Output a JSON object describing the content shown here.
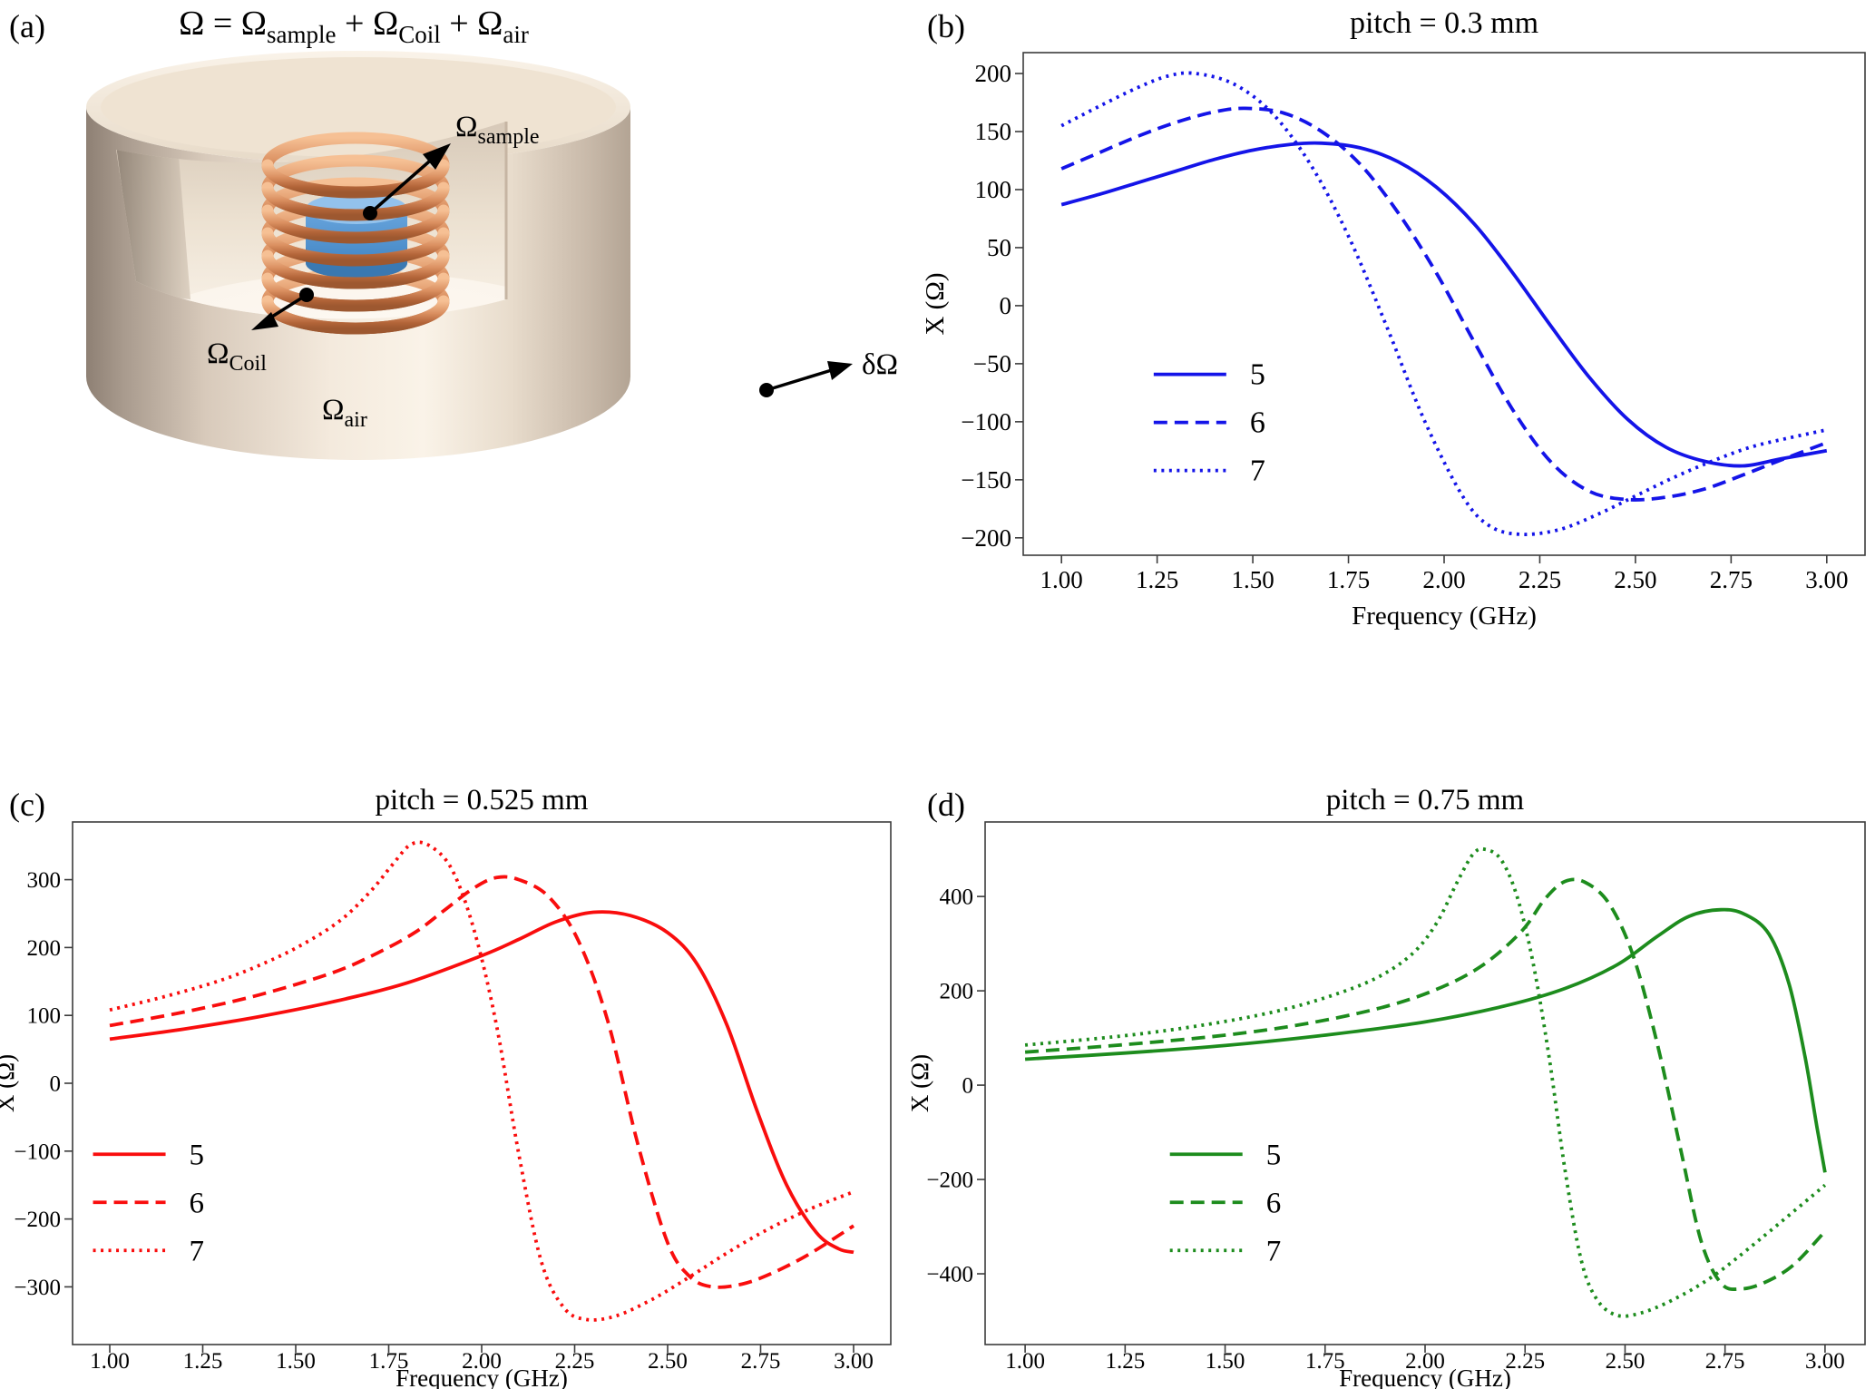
{
  "panel_a": {
    "label": "(a)",
    "formula": {
      "p1": "Ω = Ω",
      "s1": "sample",
      "p2": " + Ω",
      "s2": "Coil",
      "p3": " + Ω",
      "s3": "air"
    },
    "annotations": {
      "sample_base": "Ω",
      "sample_sub": "sample",
      "coil_base": "Ω",
      "coil_sub": "Coil",
      "air_base": "Ω",
      "air_sub": "air",
      "boundary": "δΩ"
    }
  },
  "chart_data": [
    {
      "panel_label": "(b)",
      "type": "line",
      "title": "pitch = 0.3 mm",
      "xlabel": "Frequency (GHz)",
      "ylabel": "X (Ω)",
      "color": "#1414e8",
      "xlim": [
        0.9,
        3.1
      ],
      "ylim": [
        -215,
        218
      ],
      "xticks": [
        1.0,
        1.25,
        1.5,
        1.75,
        2.0,
        2.25,
        2.5,
        2.75,
        3.0
      ],
      "xtick_labels": [
        "1.00",
        "1.25",
        "1.50",
        "1.75",
        "2.00",
        "2.25",
        "2.50",
        "2.75",
        "3.00"
      ],
      "yticks": [
        -200,
        -150,
        -100,
        -50,
        0,
        50,
        100,
        150,
        200
      ],
      "ytick_labels": [
        "−200",
        "−150",
        "−100",
        "−50",
        "0",
        "50",
        "100",
        "150",
        "200"
      ],
      "legend_position": "center-left",
      "grid": false,
      "series": [
        {
          "name": "5",
          "style": "solid",
          "points": [
            [
              1.0,
              87
            ],
            [
              1.1,
              96
            ],
            [
              1.2,
              106
            ],
            [
              1.3,
              116
            ],
            [
              1.4,
              126
            ],
            [
              1.5,
              134
            ],
            [
              1.6,
              139
            ],
            [
              1.68,
              140
            ],
            [
              1.78,
              136
            ],
            [
              1.88,
              124
            ],
            [
              1.98,
              102
            ],
            [
              2.08,
              70
            ],
            [
              2.18,
              28
            ],
            [
              2.28,
              -18
            ],
            [
              2.38,
              -62
            ],
            [
              2.48,
              -98
            ],
            [
              2.58,
              -122
            ],
            [
              2.68,
              -134
            ],
            [
              2.78,
              -138
            ],
            [
              2.88,
              -132
            ],
            [
              3.0,
              -125
            ]
          ]
        },
        {
          "name": "6",
          "style": "dashed",
          "points": [
            [
              1.0,
              118
            ],
            [
              1.1,
              132
            ],
            [
              1.2,
              146
            ],
            [
              1.3,
              158
            ],
            [
              1.4,
              167
            ],
            [
              1.48,
              170
            ],
            [
              1.58,
              166
            ],
            [
              1.68,
              150
            ],
            [
              1.78,
              122
            ],
            [
              1.88,
              80
            ],
            [
              1.98,
              28
            ],
            [
              2.08,
              -32
            ],
            [
              2.18,
              -90
            ],
            [
              2.28,
              -135
            ],
            [
              2.38,
              -160
            ],
            [
              2.48,
              -167
            ],
            [
              2.58,
              -165
            ],
            [
              2.68,
              -158
            ],
            [
              2.78,
              -146
            ],
            [
              2.88,
              -133
            ],
            [
              3.0,
              -118
            ]
          ]
        },
        {
          "name": "7",
          "style": "dotted",
          "points": [
            [
              1.0,
              155
            ],
            [
              1.1,
              172
            ],
            [
              1.2,
              188
            ],
            [
              1.28,
              198
            ],
            [
              1.35,
              200
            ],
            [
              1.45,
              191
            ],
            [
              1.55,
              166
            ],
            [
              1.65,
              122
            ],
            [
              1.75,
              60
            ],
            [
              1.85,
              -18
            ],
            [
              1.95,
              -100
            ],
            [
              2.05,
              -165
            ],
            [
              2.12,
              -190
            ],
            [
              2.2,
              -197
            ],
            [
              2.3,
              -193
            ],
            [
              2.4,
              -180
            ],
            [
              2.5,
              -164
            ],
            [
              2.6,
              -148
            ],
            [
              2.7,
              -134
            ],
            [
              2.8,
              -122
            ],
            [
              2.9,
              -114
            ],
            [
              3.0,
              -107
            ]
          ]
        }
      ]
    },
    {
      "panel_label": "(c)",
      "type": "line",
      "title": "pitch = 0.525 mm",
      "xlabel": "Frequency (GHz)",
      "ylabel": "X (Ω)",
      "color": "#f90d0d",
      "xlim": [
        0.9,
        3.1
      ],
      "ylim": [
        -385,
        385
      ],
      "xticks": [
        1.0,
        1.25,
        1.5,
        1.75,
        2.0,
        2.25,
        2.5,
        2.75,
        3.0
      ],
      "xtick_labels": [
        "1.00",
        "1.25",
        "1.50",
        "1.75",
        "2.00",
        "2.25",
        "2.50",
        "2.75",
        "3.00"
      ],
      "yticks": [
        -300,
        -200,
        -100,
        0,
        100,
        200,
        300
      ],
      "ytick_labels": [
        "−300",
        "−200",
        "−100",
        "0",
        "100",
        "200",
        "300"
      ],
      "legend_position": "center-left",
      "grid": false,
      "series": [
        {
          "name": "5",
          "style": "solid",
          "points": [
            [
              1.0,
              65
            ],
            [
              1.2,
              80
            ],
            [
              1.4,
              98
            ],
            [
              1.6,
              120
            ],
            [
              1.8,
              148
            ],
            [
              2.0,
              188
            ],
            [
              2.1,
              212
            ],
            [
              2.2,
              238
            ],
            [
              2.3,
              252
            ],
            [
              2.4,
              247
            ],
            [
              2.5,
              222
            ],
            [
              2.58,
              175
            ],
            [
              2.66,
              85
            ],
            [
              2.74,
              -40
            ],
            [
              2.82,
              -150
            ],
            [
              2.9,
              -220
            ],
            [
              2.96,
              -244
            ],
            [
              3.0,
              -249
            ]
          ]
        },
        {
          "name": "6",
          "style": "dashed",
          "points": [
            [
              1.0,
              85
            ],
            [
              1.2,
              105
            ],
            [
              1.4,
              130
            ],
            [
              1.6,
              163
            ],
            [
              1.72,
              192
            ],
            [
              1.82,
              222
            ],
            [
              1.9,
              255
            ],
            [
              1.98,
              288
            ],
            [
              2.04,
              303
            ],
            [
              2.1,
              300
            ],
            [
              2.18,
              275
            ],
            [
              2.26,
              210
            ],
            [
              2.34,
              90
            ],
            [
              2.42,
              -90
            ],
            [
              2.5,
              -235
            ],
            [
              2.56,
              -285
            ],
            [
              2.62,
              -300
            ],
            [
              2.7,
              -296
            ],
            [
              2.78,
              -280
            ],
            [
              2.88,
              -252
            ],
            [
              3.0,
              -210
            ]
          ]
        },
        {
          "name": "7",
          "style": "dotted",
          "points": [
            [
              1.0,
              108
            ],
            [
              1.15,
              128
            ],
            [
              1.3,
              152
            ],
            [
              1.42,
              178
            ],
            [
              1.52,
              205
            ],
            [
              1.62,
              240
            ],
            [
              1.7,
              282
            ],
            [
              1.76,
              322
            ],
            [
              1.81,
              352
            ],
            [
              1.86,
              350
            ],
            [
              1.92,
              315
            ],
            [
              1.98,
              225
            ],
            [
              2.04,
              85
            ],
            [
              2.1,
              -105
            ],
            [
              2.16,
              -262
            ],
            [
              2.22,
              -330
            ],
            [
              2.28,
              -348
            ],
            [
              2.36,
              -343
            ],
            [
              2.46,
              -318
            ],
            [
              2.56,
              -285
            ],
            [
              2.66,
              -250
            ],
            [
              2.76,
              -218
            ],
            [
              2.88,
              -186
            ],
            [
              3.0,
              -160
            ]
          ]
        }
      ]
    },
    {
      "panel_label": "(d)",
      "type": "line",
      "title": "pitch = 0.75 mm",
      "xlabel": "Frequency (GHz)",
      "ylabel": "X (Ω)",
      "color": "#1d8c1d",
      "xlim": [
        0.9,
        3.1
      ],
      "ylim": [
        -550,
        558
      ],
      "xticks": [
        1.0,
        1.25,
        1.5,
        1.75,
        2.0,
        2.25,
        2.5,
        2.75,
        3.0
      ],
      "xtick_labels": [
        "1.00",
        "1.25",
        "1.50",
        "1.75",
        "2.00",
        "2.25",
        "2.50",
        "2.75",
        "3.00"
      ],
      "yticks": [
        -400,
        -200,
        0,
        200,
        400
      ],
      "ytick_labels": [
        "−400",
        "−200",
        "0",
        "200",
        "400"
      ],
      "legend_position": "center-left",
      "grid": false,
      "series": [
        {
          "name": "5",
          "style": "solid",
          "points": [
            [
              1.0,
              55
            ],
            [
              1.25,
              68
            ],
            [
              1.5,
              84
            ],
            [
              1.75,
              106
            ],
            [
              2.0,
              134
            ],
            [
              2.2,
              168
            ],
            [
              2.35,
              205
            ],
            [
              2.48,
              255
            ],
            [
              2.58,
              315
            ],
            [
              2.66,
              358
            ],
            [
              2.74,
              372
            ],
            [
              2.8,
              362
            ],
            [
              2.86,
              320
            ],
            [
              2.91,
              215
            ],
            [
              2.95,
              60
            ],
            [
              2.98,
              -90
            ],
            [
              3.0,
              -185
            ]
          ]
        },
        {
          "name": "6",
          "style": "dashed",
          "points": [
            [
              1.0,
              70
            ],
            [
              1.25,
              86
            ],
            [
              1.5,
              106
            ],
            [
              1.7,
              130
            ],
            [
              1.88,
              162
            ],
            [
              2.02,
              200
            ],
            [
              2.14,
              252
            ],
            [
              2.24,
              325
            ],
            [
              2.3,
              395
            ],
            [
              2.35,
              432
            ],
            [
              2.4,
              430
            ],
            [
              2.46,
              385
            ],
            [
              2.52,
              275
            ],
            [
              2.58,
              90
            ],
            [
              2.64,
              -140
            ],
            [
              2.69,
              -330
            ],
            [
              2.74,
              -420
            ],
            [
              2.79,
              -432
            ],
            [
              2.85,
              -418
            ],
            [
              2.92,
              -382
            ],
            [
              3.0,
              -310
            ]
          ]
        },
        {
          "name": "7",
          "style": "dotted",
          "points": [
            [
              1.0,
              85
            ],
            [
              1.25,
              105
            ],
            [
              1.45,
              128
            ],
            [
              1.62,
              155
            ],
            [
              1.76,
              188
            ],
            [
              1.88,
              228
            ],
            [
              1.97,
              280
            ],
            [
              2.03,
              345
            ],
            [
              2.08,
              430
            ],
            [
              2.12,
              490
            ],
            [
              2.15,
              500
            ],
            [
              2.19,
              478
            ],
            [
              2.23,
              400
            ],
            [
              2.27,
              260
            ],
            [
              2.31,
              60
            ],
            [
              2.35,
              -180
            ],
            [
              2.39,
              -370
            ],
            [
              2.43,
              -455
            ],
            [
              2.48,
              -488
            ],
            [
              2.54,
              -483
            ],
            [
              2.62,
              -455
            ],
            [
              2.72,
              -405
            ],
            [
              2.84,
              -325
            ],
            [
              3.0,
              -212
            ]
          ]
        }
      ]
    }
  ]
}
